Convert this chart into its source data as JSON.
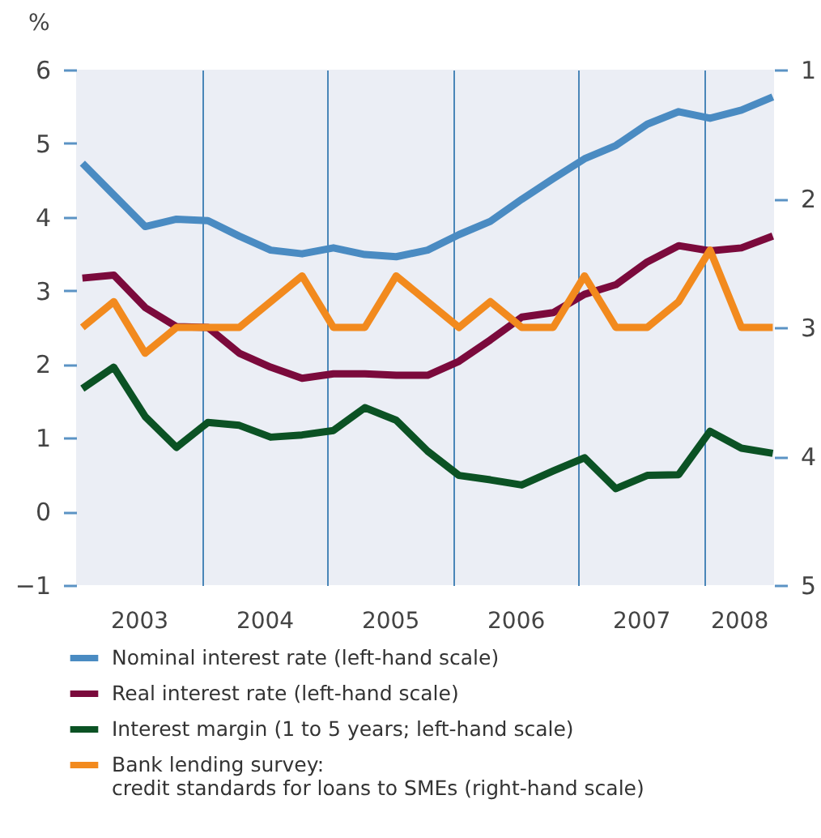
{
  "chart_data": {
    "type": "line",
    "ylabel": "%",
    "x": [
      2003.05,
      2003.3,
      2003.55,
      2003.8,
      2004.05,
      2004.3,
      2004.55,
      2004.8,
      2005.05,
      2005.3,
      2005.55,
      2005.8,
      2006.05,
      2006.3,
      2006.55,
      2006.8,
      2007.05,
      2007.3,
      2007.55,
      2007.8,
      2008.05,
      2008.3,
      2008.55
    ],
    "series": [
      {
        "name": "Nominal interest rate (left-hand scale)",
        "color": "#4a8bc2",
        "values": [
          4.73,
          4.3,
          3.87,
          3.97,
          3.95,
          3.74,
          3.55,
          3.5,
          3.58,
          3.49,
          3.46,
          3.55,
          3.76,
          3.94,
          4.24,
          4.52,
          4.79,
          4.97,
          5.26,
          5.43,
          5.34,
          5.45,
          5.63
        ]
      },
      {
        "name": "Real interest rate (left-hand scale)",
        "color": "#7b0a3c",
        "values": [
          3.17,
          3.21,
          2.77,
          2.51,
          2.5,
          2.15,
          1.96,
          1.81,
          1.87,
          1.87,
          1.85,
          1.85,
          2.04,
          2.33,
          2.64,
          2.7,
          2.95,
          3.08,
          3.39,
          3.61,
          3.54,
          3.58,
          3.74
        ]
      },
      {
        "name": "Interest margin (1 to 5 years; left-hand scale)",
        "color": "#0b5224",
        "values": [
          1.67,
          1.96,
          1.29,
          0.87,
          1.21,
          1.17,
          1.01,
          1.04,
          1.1,
          1.41,
          1.24,
          0.82,
          0.49,
          0.43,
          0.36,
          0.55,
          0.73,
          0.31,
          0.49,
          0.5,
          1.09,
          0.86,
          0.79
        ]
      },
      {
        "name": "Bank lending survey:\ncredit standards for loans to SMEs (right-hand scale)",
        "color": "#f28a1e",
        "axis": "y2",
        "values": [
          3.0,
          2.8,
          3.2,
          3.0,
          3.0,
          3.0,
          2.8,
          2.6,
          3.0,
          3.0,
          2.6,
          2.8,
          3.0,
          2.8,
          3.0,
          3.0,
          2.6,
          3.0,
          3.0,
          2.8,
          2.4,
          3.0,
          3.0
        ]
      }
    ],
    "xlim": [
      2003,
      2008.56
    ],
    "xticks": [
      {
        "value": 2003.5,
        "label": "2003"
      },
      {
        "value": 2004,
        "label": null
      },
      {
        "value": 2004.5,
        "label": "2004"
      },
      {
        "value": 2005,
        "label": null
      },
      {
        "value": 2005.5,
        "label": "2005"
      },
      {
        "value": 2006,
        "label": null
      },
      {
        "value": 2006.5,
        "label": "2006"
      },
      {
        "value": 2007,
        "label": null
      },
      {
        "value": 2007.5,
        "label": "2007"
      },
      {
        "value": 2008,
        "label": null
      },
      {
        "value": 2008.28,
        "label": "2008"
      }
    ],
    "ylim": [
      -1,
      6
    ],
    "yticks": [
      {
        "value": -1,
        "label": "−1"
      },
      0,
      1,
      2,
      3,
      4,
      5,
      6
    ],
    "y2lim": [
      5,
      1
    ],
    "y2ticks": [
      1,
      2,
      3,
      4,
      5
    ],
    "grid": "x",
    "legend": "bottom"
  }
}
